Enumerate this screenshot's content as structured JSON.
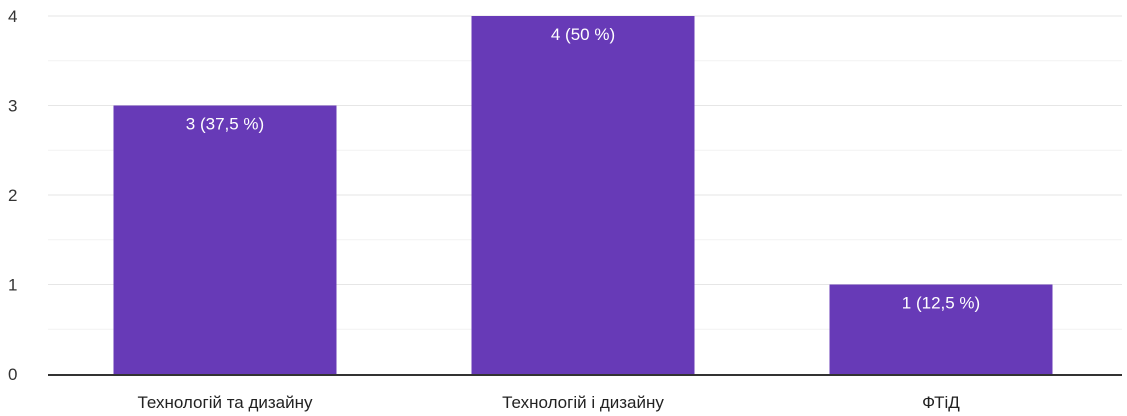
{
  "chart_data": {
    "type": "bar",
    "categories": [
      "Технологій та дизайну",
      "Технологій і дизайну",
      "ФТіД"
    ],
    "values": [
      3,
      4,
      1
    ],
    "data_labels": [
      "3 (37,5 %)",
      "4 (50 %)",
      "1 (12,5 %)"
    ],
    "yticks": [
      "0",
      "1",
      "2",
      "3",
      "4"
    ],
    "ylim": [
      0,
      4
    ],
    "grid": true,
    "colors": {
      "bar": "#673ab7",
      "grid_major": "#e6e6e6",
      "grid_minor": "#f2f2f2",
      "axis": "#333333"
    }
  }
}
